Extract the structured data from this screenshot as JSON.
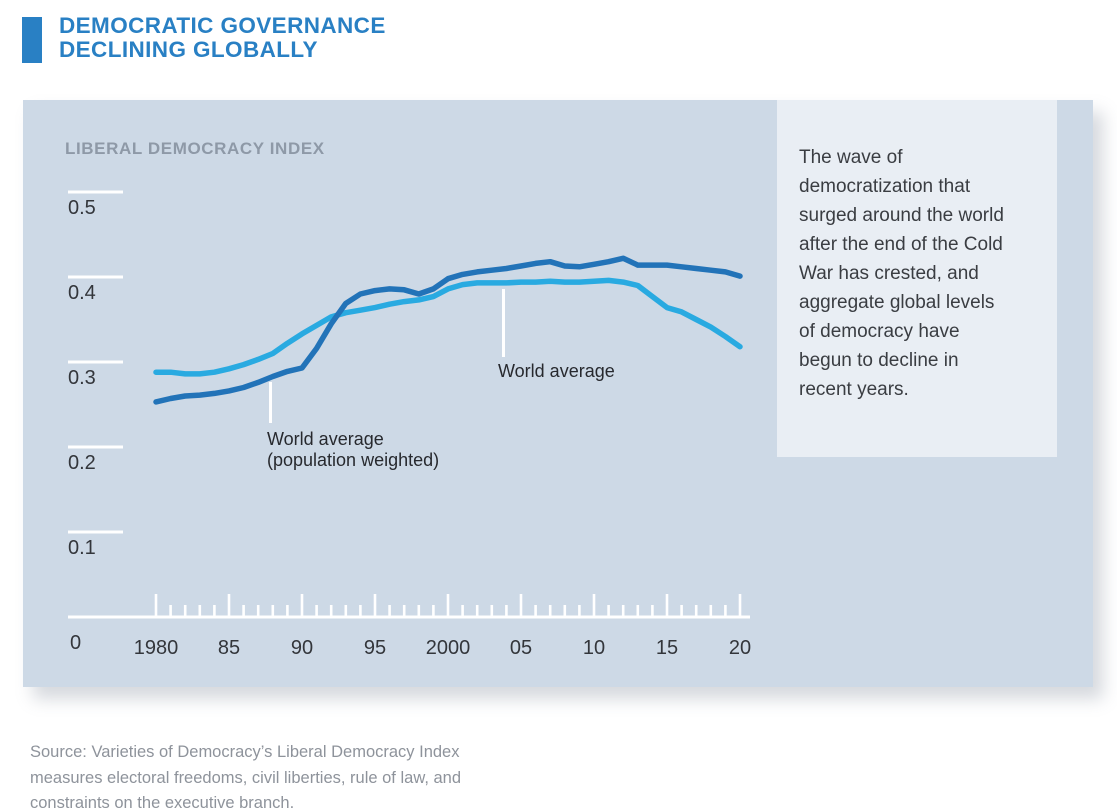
{
  "header": {
    "title": "DEMOCRATIC GOVERNANCE\nDECLINING GLOBALLY"
  },
  "sidebar": {
    "text": "The wave of\ndemocratization that\nsurged around the world\nafter the end of the Cold\nWar has crested, and\naggregate global levels\nof democracy have\nbegun to decline in\nrecent years."
  },
  "source": {
    "text": "Source: Varieties of Democracy’s Liberal Democracy Index\nmeasures electoral freedoms, civil liberties, rule of law, and\nconstraints on the executive branch."
  },
  "chart": {
    "header": "LIBERAL DEMOCRACY INDEX",
    "annotations": [
      {
        "label": "World average"
      },
      {
        "label": "World average\n(population weighted)"
      }
    ]
  },
  "colors": {
    "accent_blue": "#2980c4",
    "panel_bg": "#cdd9e6",
    "sidebar_bg": "#e9eef4",
    "world_average_line": "#2273b8",
    "population_weighted_line": "#29aae1",
    "axis": "#ffffff",
    "axis_text": "#33363b",
    "header_gray": "#8e99a7",
    "source_gray": "#8e939b"
  },
  "chart_data": {
    "type": "line",
    "title": "LIBERAL DEMOCRACY INDEX",
    "xlabel": "",
    "ylabel": "",
    "ylim": [
      0,
      0.5
    ],
    "grid": false,
    "legend_position": "inline-callouts",
    "x": [
      1980,
      1981,
      1982,
      1983,
      1984,
      1985,
      1986,
      1987,
      1988,
      1989,
      1990,
      1991,
      1992,
      1993,
      1994,
      1995,
      1996,
      1997,
      1998,
      1999,
      2000,
      2001,
      2002,
      2003,
      2004,
      2005,
      2006,
      2007,
      2008,
      2009,
      2010,
      2011,
      2012,
      2013,
      2014,
      2015,
      2016,
      2017,
      2018,
      2019,
      2020
    ],
    "xtick_major_labels": [
      "1980",
      "85",
      "90",
      "95",
      "2000",
      "05",
      "10",
      "15",
      "20"
    ],
    "xtick_major_years": [
      1980,
      1985,
      1990,
      1995,
      2000,
      2005,
      2010,
      2015,
      2020
    ],
    "yticks": [
      0,
      0.1,
      0.2,
      0.3,
      0.4,
      0.5
    ],
    "ytick_labels": [
      "0",
      "0.1",
      "0.2",
      "0.3",
      "0.4",
      "0.5"
    ],
    "series": [
      {
        "name": "World average (population weighted)",
        "color": "#29aae1",
        "values": [
          0.288,
          0.288,
          0.286,
          0.286,
          0.288,
          0.292,
          0.297,
          0.303,
          0.31,
          0.322,
          0.333,
          0.343,
          0.353,
          0.358,
          0.361,
          0.364,
          0.368,
          0.371,
          0.373,
          0.377,
          0.386,
          0.391,
          0.393,
          0.393,
          0.393,
          0.394,
          0.394,
          0.395,
          0.394,
          0.394,
          0.395,
          0.396,
          0.394,
          0.39,
          0.377,
          0.364,
          0.359,
          0.35,
          0.341,
          0.33,
          0.318
        ]
      },
      {
        "name": "World average",
        "color": "#2273b8",
        "values": [
          0.253,
          0.257,
          0.26,
          0.261,
          0.263,
          0.266,
          0.27,
          0.276,
          0.283,
          0.289,
          0.293,
          0.316,
          0.345,
          0.369,
          0.38,
          0.384,
          0.386,
          0.385,
          0.38,
          0.386,
          0.398,
          0.403,
          0.406,
          0.408,
          0.41,
          0.413,
          0.416,
          0.418,
          0.413,
          0.412,
          0.415,
          0.418,
          0.422,
          0.414,
          0.414,
          0.414,
          0.412,
          0.41,
          0.408,
          0.406,
          0.401
        ]
      }
    ]
  }
}
